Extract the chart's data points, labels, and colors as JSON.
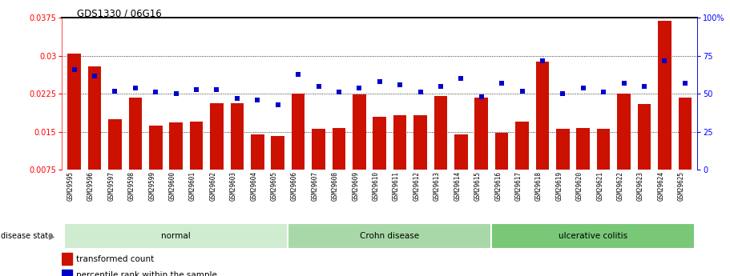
{
  "title": "GDS1330 / 06G16",
  "samples": [
    "GSM29595",
    "GSM29596",
    "GSM29597",
    "GSM29598",
    "GSM29599",
    "GSM29600",
    "GSM29601",
    "GSM29602",
    "GSM29603",
    "GSM29604",
    "GSM29605",
    "GSM29606",
    "GSM29607",
    "GSM29608",
    "GSM29609",
    "GSM29610",
    "GSM29611",
    "GSM29612",
    "GSM29613",
    "GSM29614",
    "GSM29615",
    "GSM29616",
    "GSM29617",
    "GSM29618",
    "GSM29619",
    "GSM29620",
    "GSM29621",
    "GSM29622",
    "GSM29623",
    "GSM29624",
    "GSM29625"
  ],
  "bar_values": [
    0.0305,
    0.028,
    0.0175,
    0.0218,
    0.0162,
    0.0168,
    0.017,
    0.0207,
    0.0207,
    0.0145,
    0.0142,
    0.0225,
    0.0156,
    0.0157,
    0.0224,
    0.018,
    0.0182,
    0.0183,
    0.022,
    0.0145,
    0.0218,
    0.0148,
    0.017,
    0.0288,
    0.0156,
    0.0158,
    0.0156,
    0.0225,
    0.0205,
    0.037,
    0.0218
  ],
  "percentile_values": [
    66,
    62,
    52,
    54,
    51,
    50,
    53,
    53,
    47,
    46,
    43,
    63,
    55,
    51,
    54,
    58,
    56,
    51,
    55,
    60,
    48,
    57,
    52,
    72,
    50,
    54,
    51,
    57,
    55,
    72,
    57
  ],
  "groups": [
    {
      "label": "normal",
      "start": 0,
      "end": 11,
      "color": "#d0ecd0"
    },
    {
      "label": "Crohn disease",
      "start": 11,
      "end": 21,
      "color": "#a8d8a8"
    },
    {
      "label": "ulcerative colitis",
      "start": 21,
      "end": 31,
      "color": "#78c878"
    }
  ],
  "bar_color": "#cc1100",
  "dot_color": "#0000cc",
  "ylim_left": [
    0.0075,
    0.0375
  ],
  "ylim_right": [
    0,
    100
  ],
  "yticks_left": [
    0.0075,
    0.015,
    0.0225,
    0.03,
    0.0375
  ],
  "yticks_right": [
    0,
    25,
    50,
    75,
    100
  ],
  "ytick_labels_right": [
    "0",
    "25",
    "50",
    "75",
    "100%"
  ],
  "grid_values": [
    0.015,
    0.0225,
    0.03
  ],
  "legend_bar_label": "transformed count",
  "legend_dot_label": "percentile rank within the sample",
  "disease_state_label": "disease state",
  "bg_color": "#ffffff"
}
